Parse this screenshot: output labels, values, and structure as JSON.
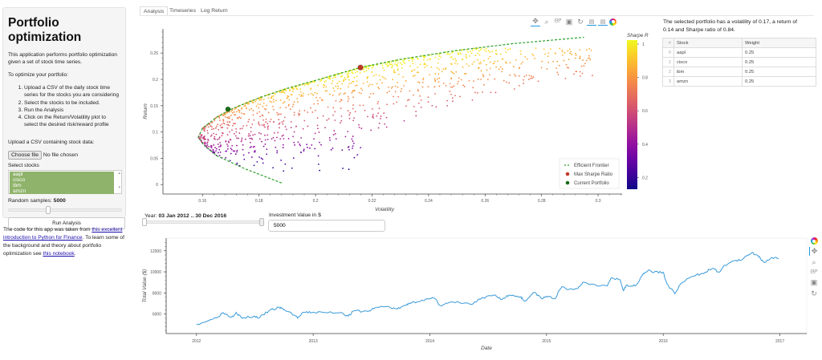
{
  "sidebar": {
    "title": "Portfolio optimization",
    "intro": "This application performs portfolio optimization given a set of stock time series.",
    "howto": "To optimize your portfolio:",
    "steps": [
      "Upload a CSV of the daily stock time series for the stocks you are considering",
      "Select the stocks to be included.",
      "Run the Analysis",
      "Click on the Return/Volatility plot to select the desired risk/reward profile"
    ],
    "upload_label": "Upload a CSV containing stock data:",
    "choose_file": "Choose file",
    "no_file": "No file chosen",
    "select_label": "Select stocks",
    "stocks": [
      "aapl",
      "cisco",
      "ibm",
      "amzn"
    ],
    "samples_label": "Random samples: ",
    "samples_value": "5000",
    "samples_fraction": 0.33,
    "run_button": "Run Analysis"
  },
  "footer": {
    "t1": "The code for this app was taken from ",
    "link1": "this excellent introduction to Python for Finance",
    "t2": ". To learn some of the background and theory about portfolio optimization see ",
    "link2": "this notebook",
    "t3": "."
  },
  "tabs": [
    {
      "label": "Analysis",
      "active": true
    },
    {
      "label": "Timeseries"
    },
    {
      "label": "Log Return"
    }
  ],
  "toolbar_icons": [
    "pan-icon",
    "box-zoom-icon",
    "wheel-zoom-icon",
    "save-icon",
    "reset-icon",
    "hover-icon",
    "hover-icon",
    "bokeh-logo-icon"
  ],
  "summary": "The selected portfolio has a volatility of 0.17, a return of 0.14 and Sharpe ratio of 0.84.",
  "weights_table": {
    "headers": [
      "#",
      "Stock",
      "Weight"
    ],
    "rows": [
      [
        "0",
        "aapl",
        "0.25"
      ],
      [
        "1",
        "cisco",
        "0.25"
      ],
      [
        "2",
        "ibm",
        "0.25"
      ],
      [
        "3",
        "amzn",
        "0.25"
      ]
    ]
  },
  "controls": {
    "year_label": "Year: ",
    "year_value": "03 Jan 2012 .. 30 Dec 2016",
    "investment_label": "Investment Value in $",
    "investment_value": "5000"
  },
  "chart_data": [
    {
      "type": "scatter",
      "xlabel": "Volatility",
      "ylabel": "Return",
      "xlim": [
        0.146,
        0.3085
      ],
      "ylim": [
        -0.018,
        0.296
      ],
      "xticks": [
        "0.16",
        "0.18",
        "0.2",
        "0.22",
        "0.24",
        "0.26",
        "0.28",
        "0.3"
      ],
      "yticks": [
        "0",
        "0.05",
        "0.1",
        "0.15",
        "0.2",
        "0.25"
      ],
      "samples": 5000,
      "colorbar": {
        "title": "Sharpe R",
        "range": [
          0.13,
          1.024
        ],
        "ticks": [
          "1",
          "0.8",
          "0.6",
          "0.4",
          "0.2"
        ],
        "palette": "Plasma"
      },
      "frontier": {
        "name": "Efficient Frontier",
        "color": "#2ca02c",
        "points": [
          [
            0.188,
            0.003
          ],
          [
            0.175,
            0.03
          ],
          [
            0.165,
            0.055
          ],
          [
            0.1605,
            0.075
          ],
          [
            0.1585,
            0.09
          ],
          [
            0.16,
            0.107
          ],
          [
            0.165,
            0.128
          ],
          [
            0.17,
            0.143
          ],
          [
            0.18,
            0.165
          ],
          [
            0.19,
            0.183
          ],
          [
            0.2,
            0.198
          ],
          [
            0.2159,
            0.2226
          ],
          [
            0.23,
            0.238
          ],
          [
            0.25,
            0.255
          ],
          [
            0.27,
            0.268
          ],
          [
            0.295,
            0.28
          ]
        ]
      },
      "max_sharpe": {
        "name": "Max Sharpe Ratio",
        "x": 0.2159,
        "y": 0.2226,
        "color": "#c0392b"
      },
      "current": {
        "name": "Current Portfolio",
        "x": 0.169,
        "y": 0.1433,
        "color": "#1a6b1a"
      },
      "legend": "bottom-right"
    },
    {
      "type": "line",
      "xlabel": "Date",
      "ylabel": "Total Value ($)",
      "xlim": [
        2011.74,
        2017.23
      ],
      "ylim": [
        4150,
        13200
      ],
      "xticks": [
        "2012",
        "2013",
        "2014",
        "2015",
        "2016",
        "2017"
      ],
      "yticks": [
        "6000",
        "8000",
        "10000",
        "12000"
      ],
      "color": "#3a9ad9",
      "x": [
        2012.0,
        2012.14,
        2012.23,
        2012.3,
        2012.34,
        2012.39,
        2012.49,
        2012.54,
        2012.62,
        2012.71,
        2012.75,
        2012.84,
        2012.87,
        2012.92,
        2012.99,
        2013.1,
        2013.24,
        2013.3,
        2013.35,
        2013.47,
        2013.53,
        2013.63,
        2013.72,
        2013.79,
        2013.82,
        2013.93,
        2014.04,
        2014.09,
        2014.16,
        2014.25,
        2014.36,
        2014.43,
        2014.55,
        2014.62,
        2014.68,
        2014.78,
        2014.81,
        2014.9,
        2014.96,
        2015.0,
        2015.07,
        2015.13,
        2015.19,
        2015.26,
        2015.31,
        2015.39,
        2015.52,
        2015.55,
        2015.63,
        2015.66,
        2015.69,
        2015.76,
        2015.83,
        2015.87,
        2015.92,
        2016.0,
        2016.03,
        2016.1,
        2016.15,
        2016.26,
        2016.33,
        2016.42,
        2016.48,
        2016.53,
        2016.6,
        2016.67,
        2016.76,
        2016.81,
        2016.86,
        2016.92,
        2016.99
      ],
      "y": [
        5040,
        5510,
        6120,
        5710,
        6160,
        5600,
        5780,
        5640,
        6310,
        6620,
        6430,
        5900,
        5640,
        6160,
        6160,
        6140,
        6160,
        5800,
        6310,
        6240,
        6600,
        6720,
        6480,
        6800,
        7030,
        7310,
        7500,
        6800,
        7060,
        7100,
        6920,
        7400,
        7810,
        7400,
        7810,
        7640,
        7230,
        8050,
        7440,
        7690,
        7440,
        8570,
        8330,
        8410,
        9010,
        8840,
        8650,
        9370,
        9250,
        8210,
        8770,
        8650,
        9850,
        10140,
        9970,
        9970,
        8890,
        7920,
        8890,
        9610,
        9850,
        10330,
        9970,
        10620,
        11050,
        11100,
        11830,
        11580,
        10930,
        11290,
        11290
      ]
    }
  ]
}
